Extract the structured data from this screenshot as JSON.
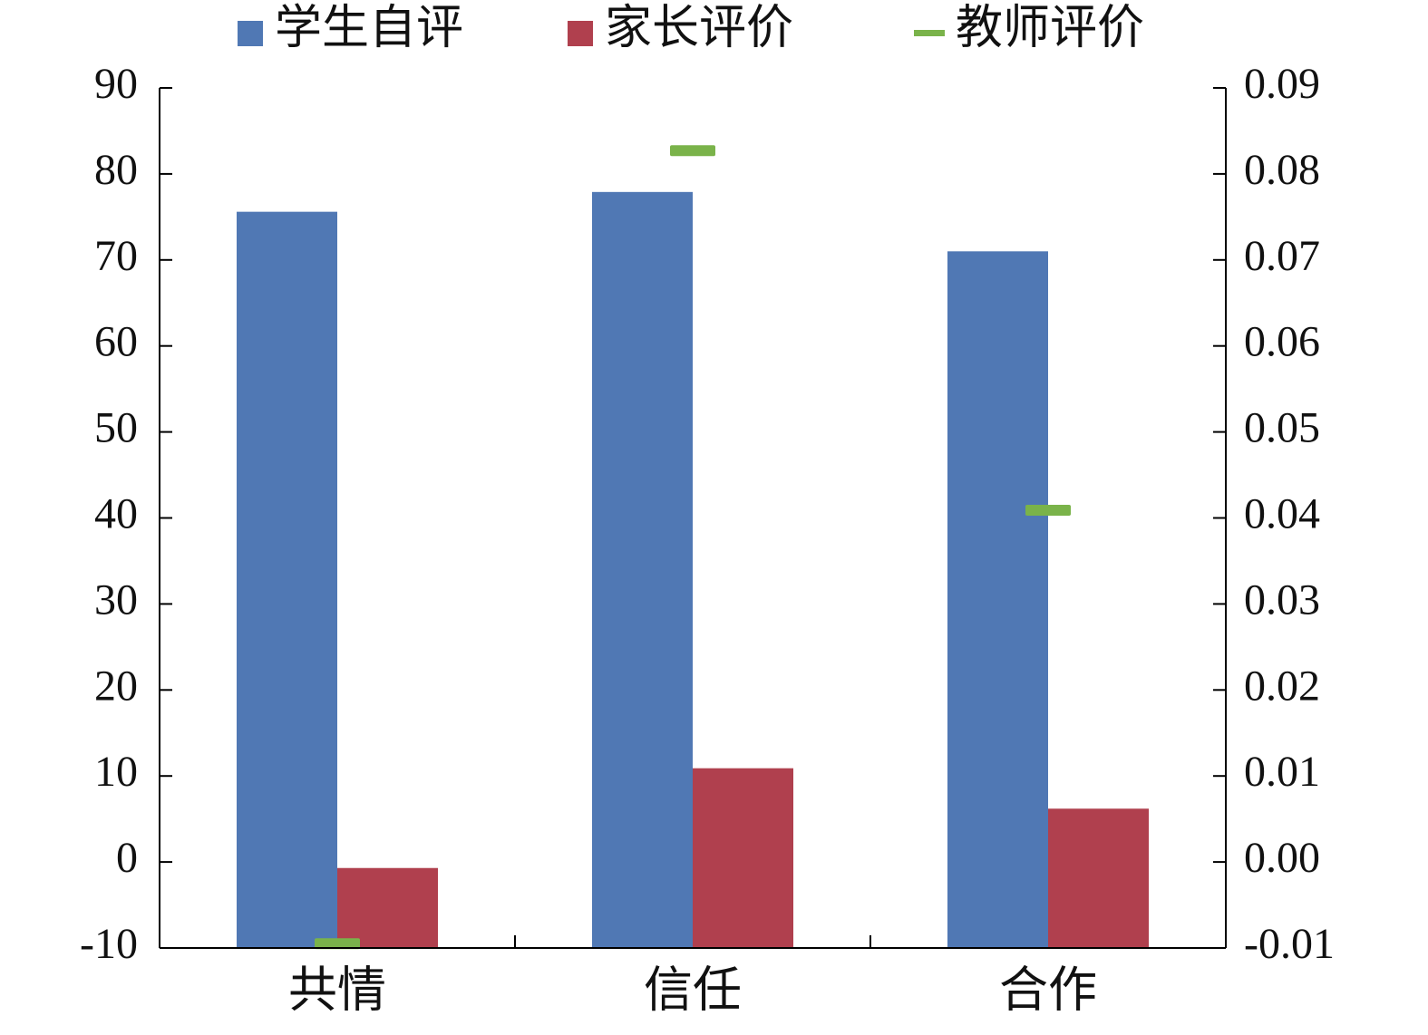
{
  "chart_data": {
    "type": "bar",
    "categories": [
      "共情",
      "信任",
      "合作"
    ],
    "series": [
      {
        "name": "学生自评",
        "color": "#5078b4",
        "type": "bar",
        "values": [
          75.6,
          77.9,
          71.0
        ]
      },
      {
        "name": "家长评价",
        "color": "#b0404e",
        "type": "bar",
        "values": [
          -0.7,
          10.9,
          6.2
        ]
      },
      {
        "name": "教师评价",
        "color": "#7ab34a",
        "type": "marker",
        "axis": "y2",
        "values": [
          -0.0095,
          0.0827,
          0.0409
        ]
      }
    ],
    "ylim": [
      -10,
      90
    ],
    "yticks": [
      -10,
      0,
      10,
      20,
      30,
      40,
      50,
      60,
      70,
      80,
      90
    ],
    "y2lim": [
      -0.01,
      0.09
    ],
    "y2ticks": [
      -0.01,
      {
        "value": 0,
        "label": "0.00"
      },
      0.01,
      0.02,
      0.03,
      0.04,
      0.05,
      0.06,
      0.07,
      0.08,
      0.09
    ],
    "legend": "top",
    "grid": false
  }
}
